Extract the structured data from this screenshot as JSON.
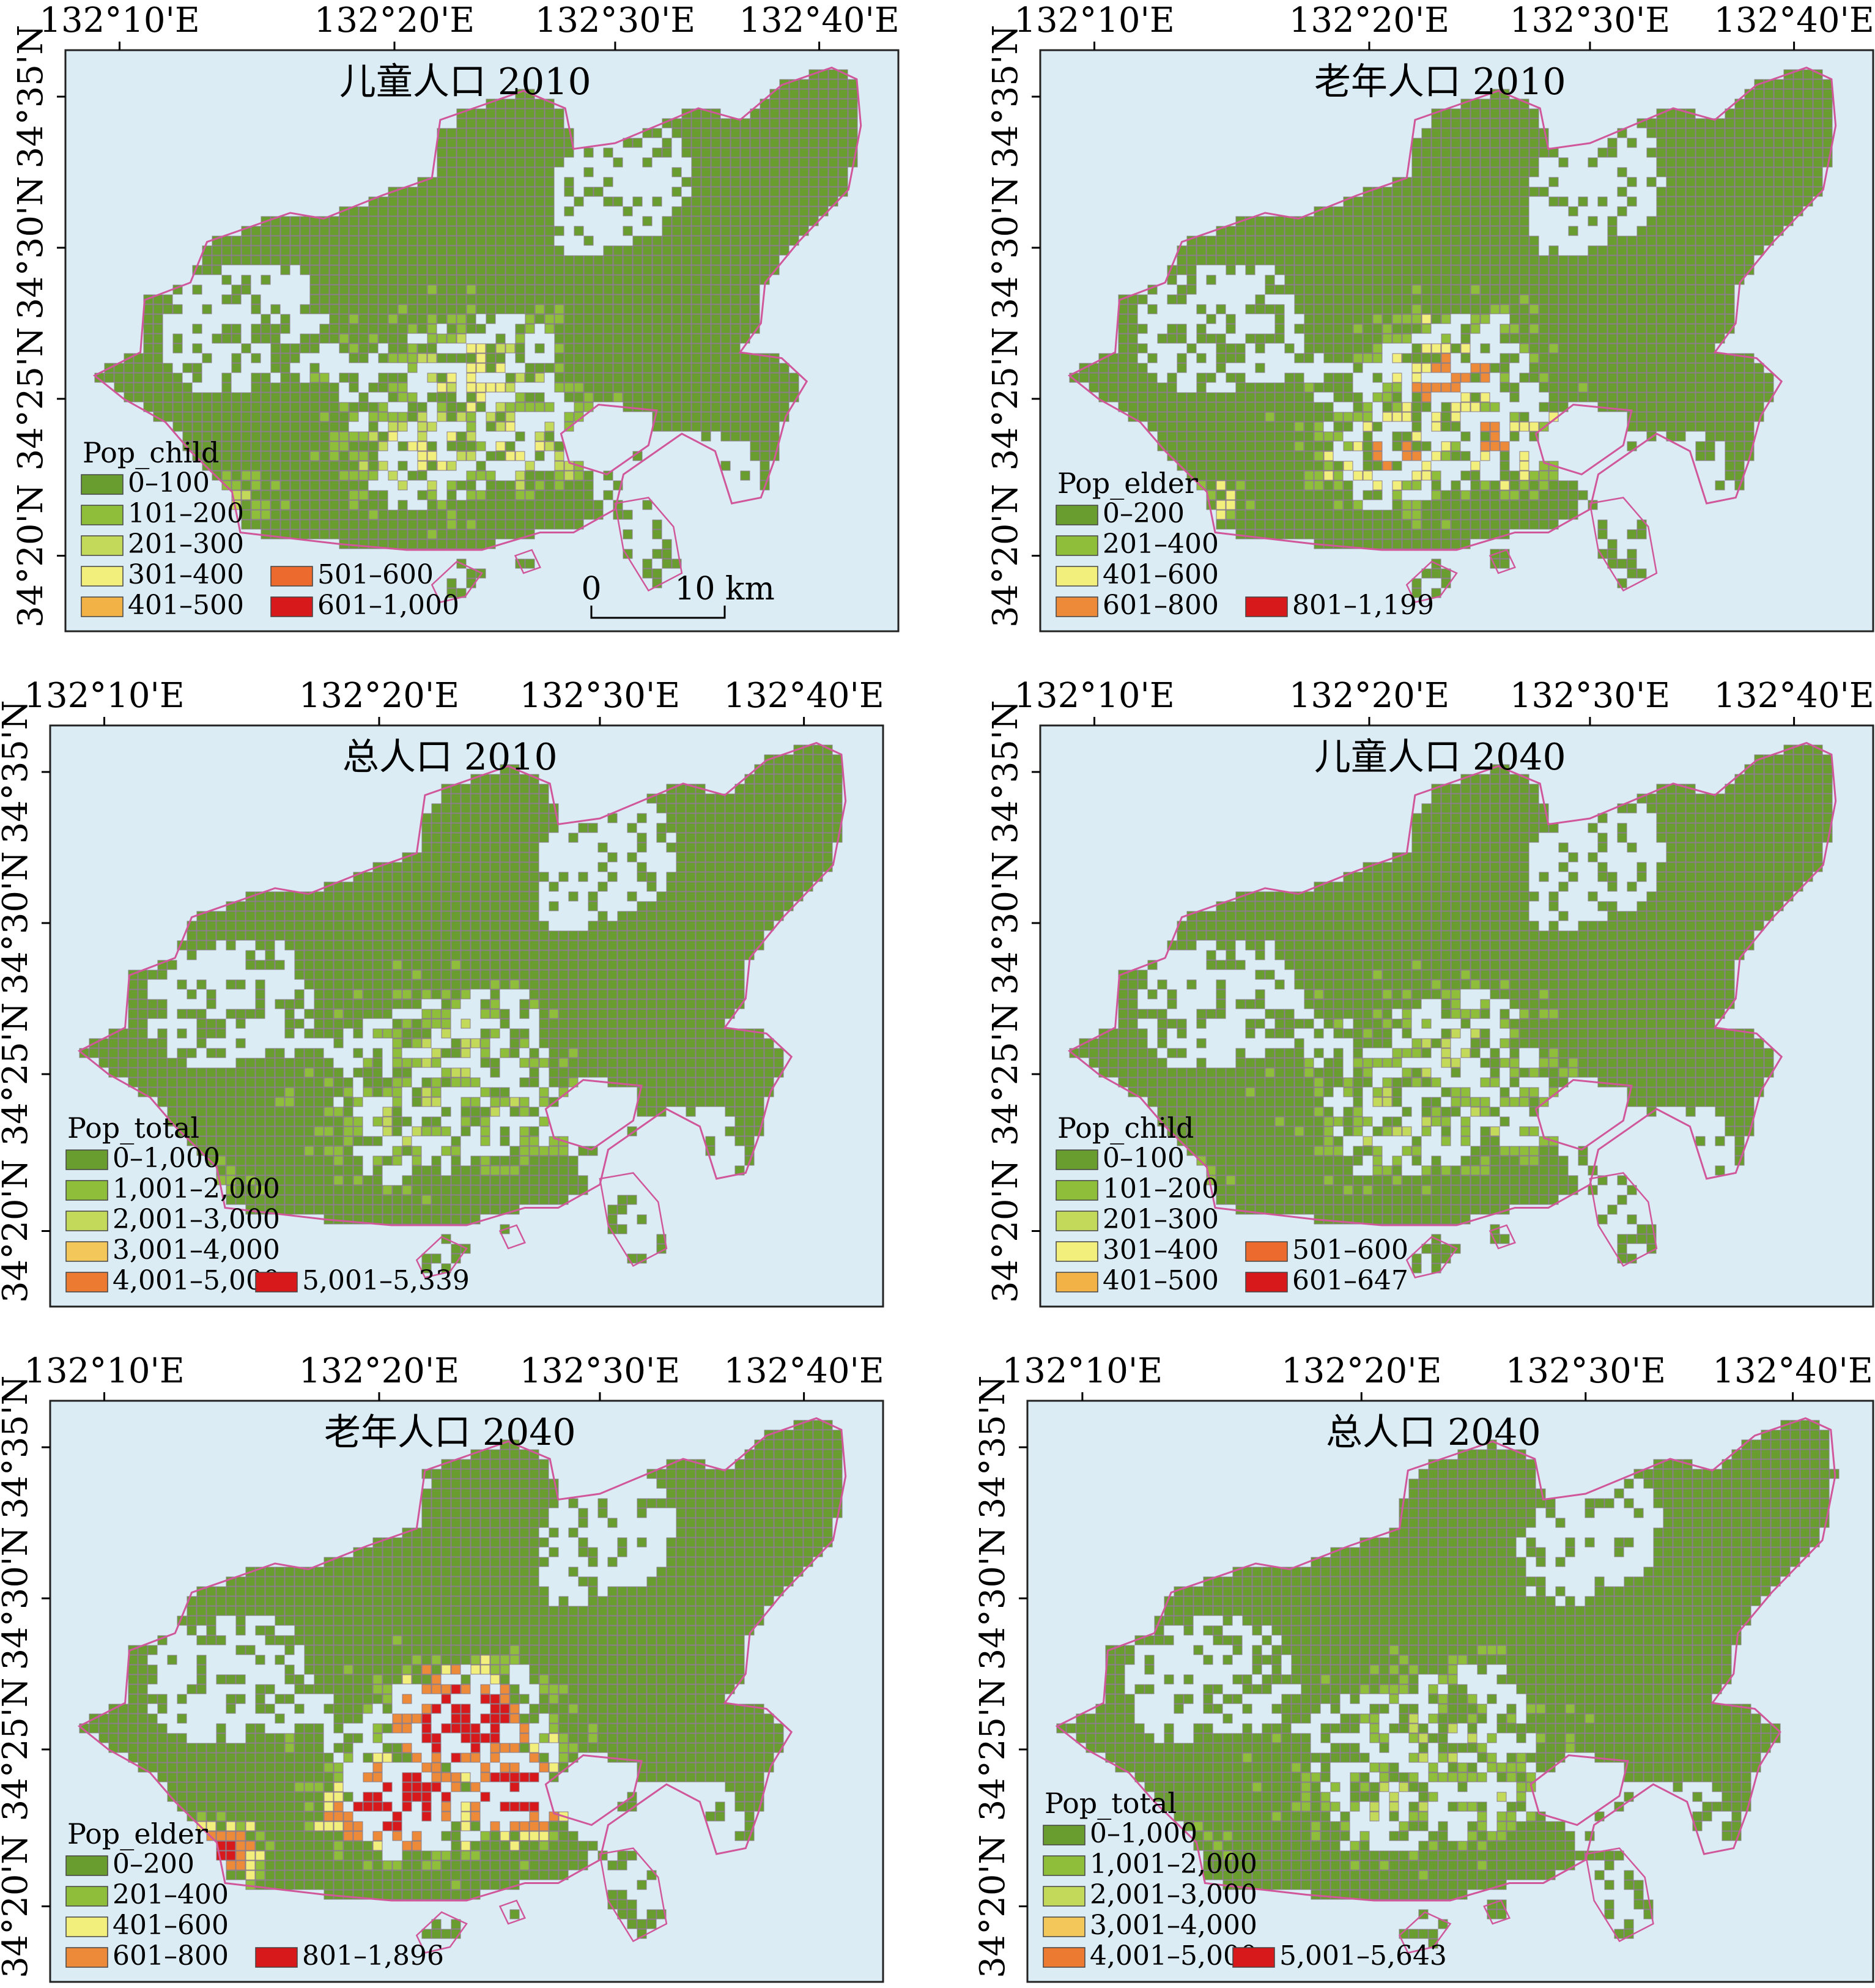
{
  "figure": {
    "lon_labels": [
      "132°10'E",
      "132°20'E",
      "132°30'E",
      "132°40'E"
    ],
    "lat_labels": [
      "34°20'N",
      "34°25'N",
      "34°30'N",
      "34°35'N"
    ],
    "palette": {
      "sea": "#dbecf5",
      "land_grid": "#6f9c3d",
      "cell_stroke": "#8a7f8a",
      "coast": "#d0579a",
      "frame": "#222222"
    },
    "scalebar": {
      "left_label": "0",
      "right_label": "10 km"
    }
  },
  "panels": [
    {
      "id": "child-2010",
      "title": "儿童人口 2010",
      "legend": {
        "title": "Pop_child",
        "classes": [
          {
            "label": "0–100",
            "color": "#6a9d2f"
          },
          {
            "label": "101–200",
            "color": "#8fbf3a"
          },
          {
            "label": "201–300",
            "color": "#c3d95a"
          },
          {
            "label": "301–400",
            "color": "#f2ef7c"
          },
          {
            "label": "401–500",
            "color": "#f3b245"
          },
          {
            "label": "501–600",
            "color": "#ec6a2d"
          },
          {
            "label": "601–1,000",
            "color": "#d7191c"
          }
        ]
      },
      "hotspot_intensity": 0.35
    },
    {
      "id": "elder-2010",
      "title": "老年人口 2010",
      "legend": {
        "title": "Pop_elder",
        "classes": [
          {
            "label": "0–200",
            "color": "#6a9d2f"
          },
          {
            "label": "201–400",
            "color": "#8fbf3a"
          },
          {
            "label": "401–600",
            "color": "#f2ef7c"
          },
          {
            "label": "601–800",
            "color": "#ec8a3a"
          },
          {
            "label": "801–1,199",
            "color": "#d7191c"
          }
        ]
      },
      "hotspot_intensity": 0.35
    },
    {
      "id": "total-2010",
      "title": "总人口 2010",
      "legend": {
        "title": "Pop_total",
        "classes": [
          {
            "label": "0–1,000",
            "color": "#6a9d2f"
          },
          {
            "label": "1,001–2,000",
            "color": "#8fbf3a"
          },
          {
            "label": "2,001–3,000",
            "color": "#c3d95a"
          },
          {
            "label": "3,001–4,000",
            "color": "#f3c75a"
          },
          {
            "label": "4,001–5,000",
            "color": "#ec7a30"
          },
          {
            "label": "5,001–5,339",
            "color": "#d7191c"
          }
        ]
      },
      "hotspot_intensity": 0.2
    },
    {
      "id": "child-2040",
      "title": "儿童人口 2040",
      "legend": {
        "title": "Pop_child",
        "classes": [
          {
            "label": "0–100",
            "color": "#6a9d2f"
          },
          {
            "label": "101–200",
            "color": "#8fbf3a"
          },
          {
            "label": "201–300",
            "color": "#c3d95a"
          },
          {
            "label": "301–400",
            "color": "#f2ef7c"
          },
          {
            "label": "401–500",
            "color": "#f3b245"
          },
          {
            "label": "501–600",
            "color": "#ec6a2d"
          },
          {
            "label": "601–647",
            "color": "#d7191c"
          }
        ]
      },
      "hotspot_intensity": 0.2
    },
    {
      "id": "elder-2040",
      "title": "老年人口 2040",
      "legend": {
        "title": "Pop_elder",
        "classes": [
          {
            "label": "0–200",
            "color": "#6a9d2f"
          },
          {
            "label": "201–400",
            "color": "#8fbf3a"
          },
          {
            "label": "401–600",
            "color": "#f2ef7c"
          },
          {
            "label": "601–800",
            "color": "#ec8a3a"
          },
          {
            "label": "801–1,896",
            "color": "#d7191c"
          }
        ]
      },
      "hotspot_intensity": 0.75
    },
    {
      "id": "total-2040",
      "title": "总人口 2040",
      "legend": {
        "title": "Pop_total",
        "classes": [
          {
            "label": "0–1,000",
            "color": "#6a9d2f"
          },
          {
            "label": "1,001–2,000",
            "color": "#8fbf3a"
          },
          {
            "label": "2,001–3,000",
            "color": "#c3d95a"
          },
          {
            "label": "3,001–4,000",
            "color": "#f3c75a"
          },
          {
            "label": "4,001–5,000",
            "color": "#ec7a30"
          },
          {
            "label": "5,001–5,643",
            "color": "#d7191c"
          }
        ]
      },
      "hotspot_intensity": 0.2
    }
  ]
}
